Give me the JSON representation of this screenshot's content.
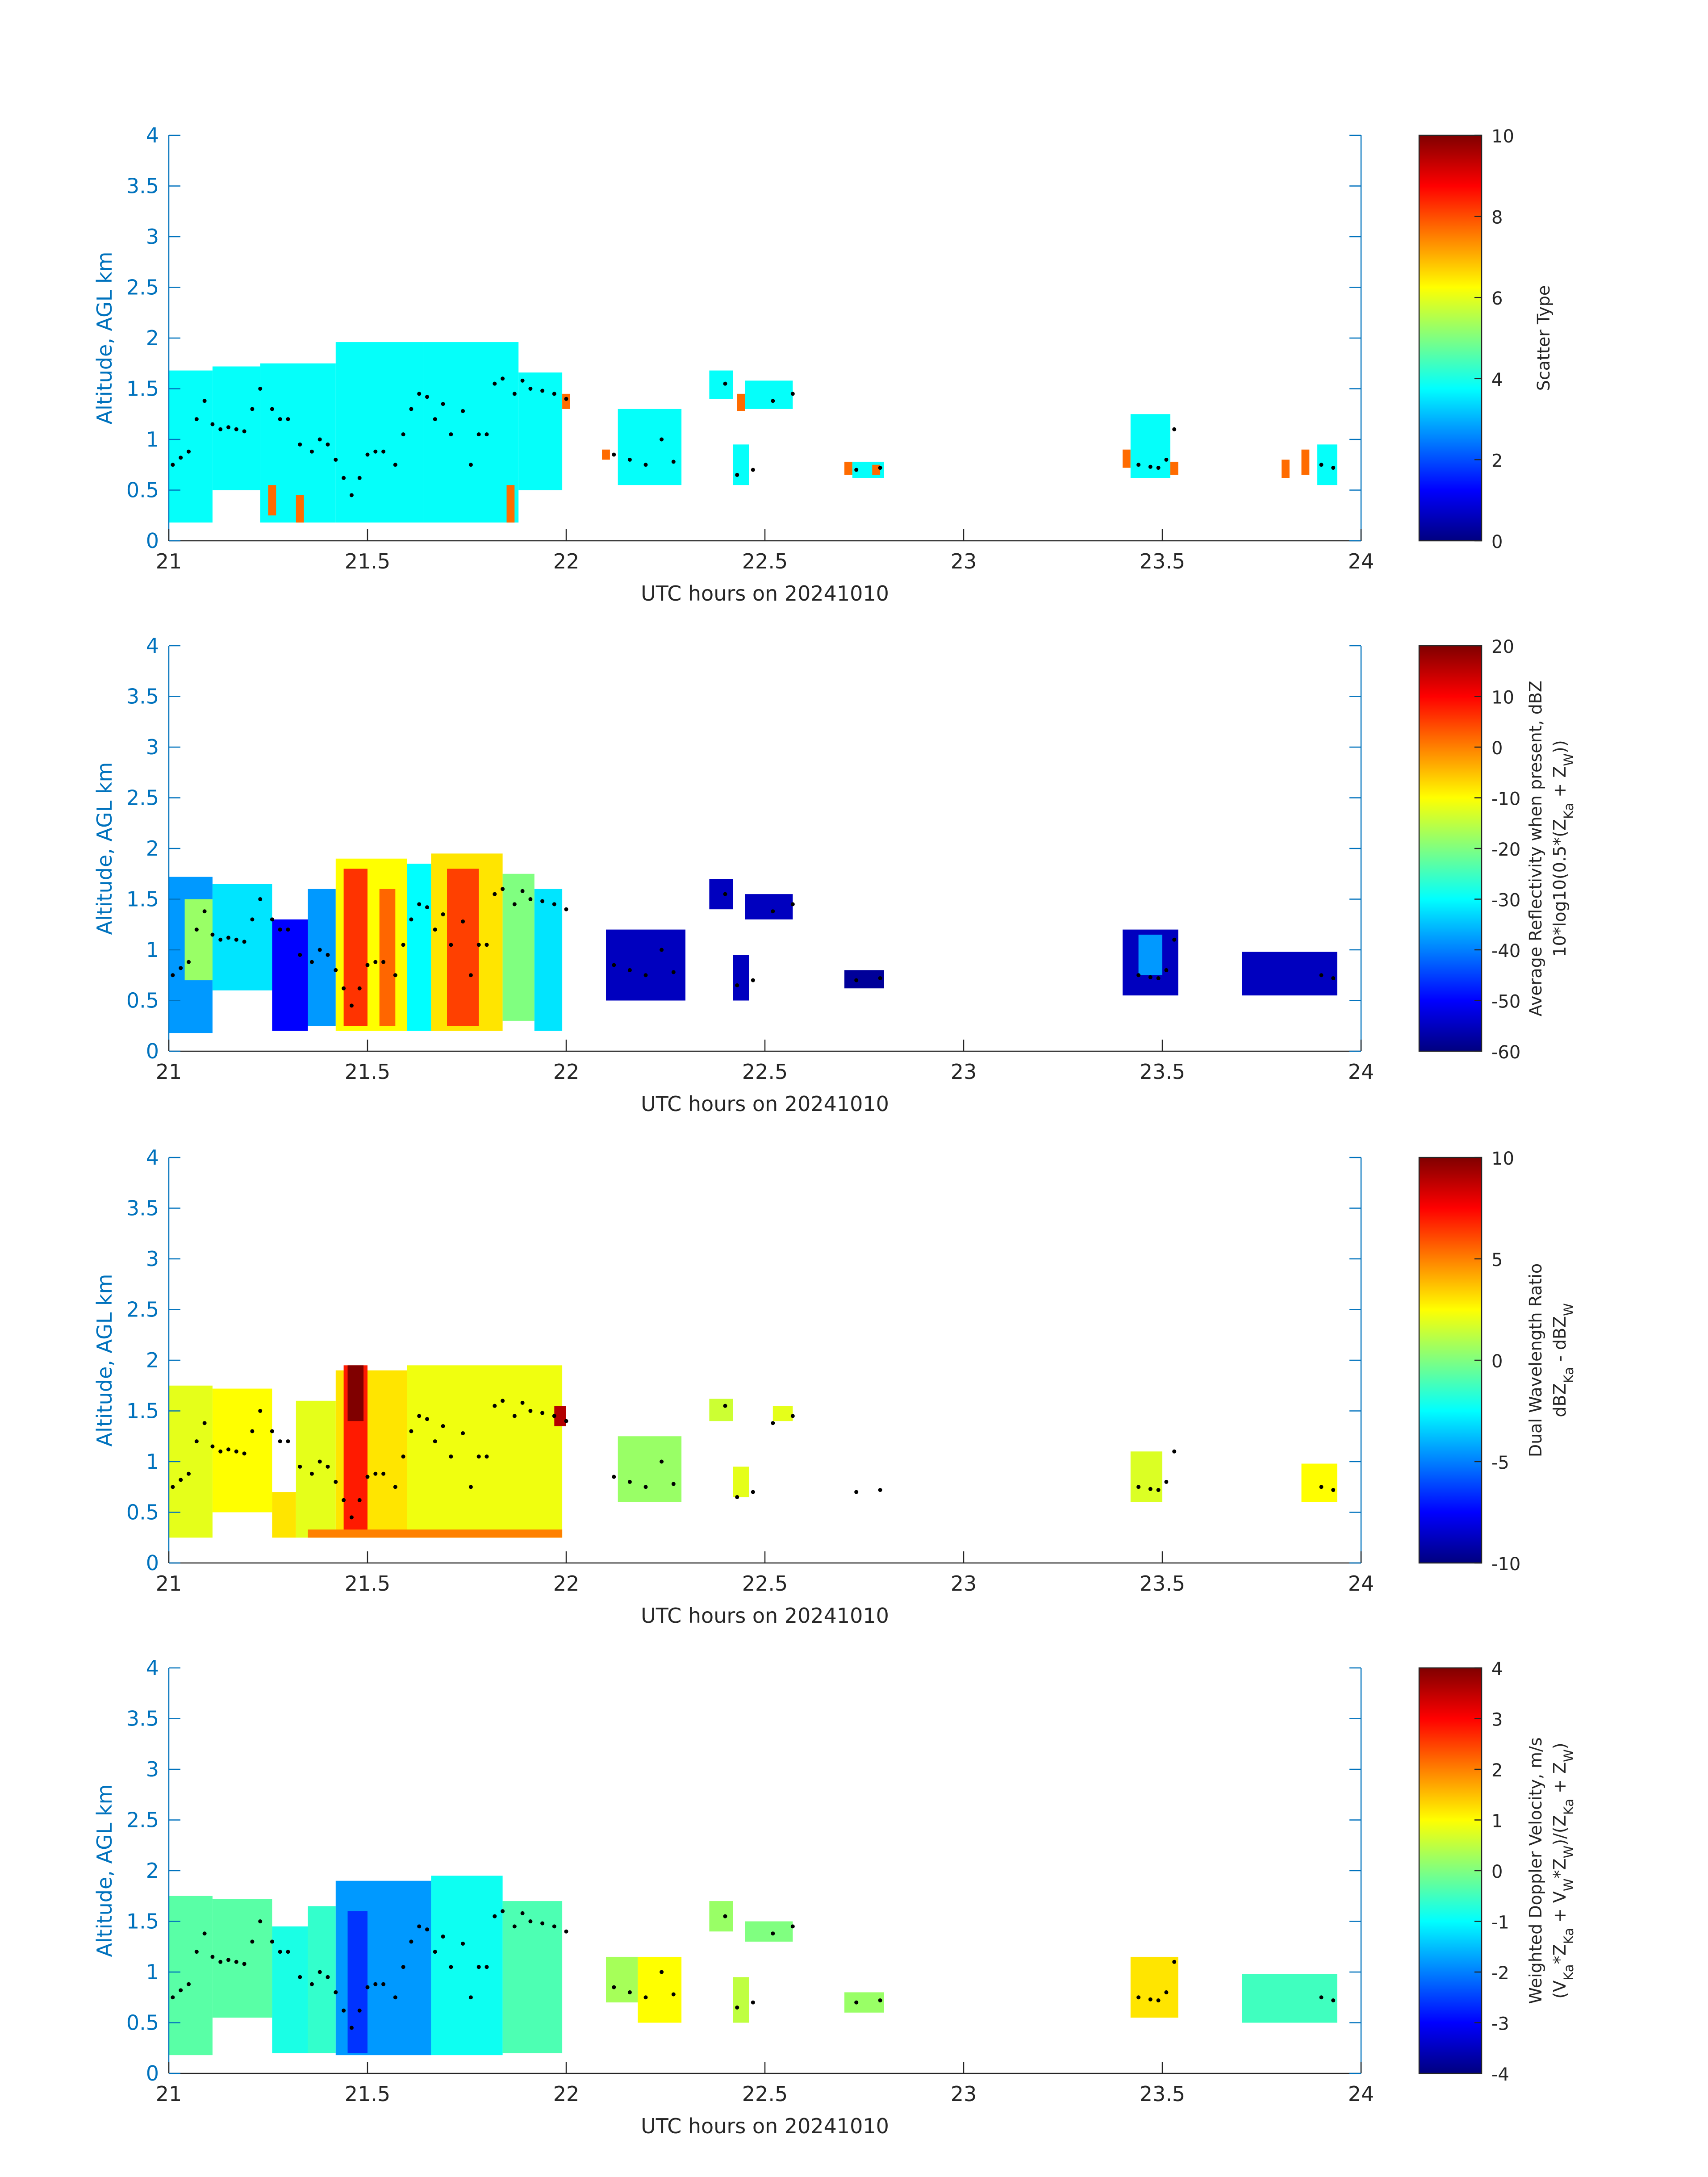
{
  "figure": {
    "date_label": "20241010",
    "axis_color": "#0072bd",
    "colormap": "jet"
  },
  "chart_data": [
    {
      "type": "heatmap",
      "xlabel": "UTC hours on 20241010",
      "ylabel": "Altitude, AGL km",
      "xlim": [
        21,
        24
      ],
      "ylim": [
        0,
        4
      ],
      "xticks": [
        21,
        21.5,
        22,
        22.5,
        23,
        23.5,
        24
      ],
      "yticks": [
        0,
        0.5,
        1,
        1.5,
        2,
        2.5,
        3,
        3.5,
        4
      ],
      "colorbar": {
        "label_lines": [
          "Scatter Type"
        ],
        "range": [
          0,
          10
        ],
        "ticks": [
          0,
          2,
          4,
          6,
          8,
          10
        ]
      },
      "cells": [
        {
          "x0": 21.0,
          "x1": 21.11,
          "y0": 0.18,
          "y1": 1.68,
          "v": 3.8
        },
        {
          "x0": 21.11,
          "x1": 21.23,
          "y0": 0.5,
          "y1": 1.72,
          "v": 3.8
        },
        {
          "x0": 21.23,
          "x1": 21.42,
          "y0": 0.18,
          "y1": 1.75,
          "v": 3.8
        },
        {
          "x0": 21.42,
          "x1": 21.64,
          "y0": 0.18,
          "y1": 1.96,
          "v": 3.8
        },
        {
          "x0": 21.64,
          "x1": 21.88,
          "y0": 0.18,
          "y1": 1.96,
          "v": 3.8
        },
        {
          "x0": 21.88,
          "x1": 21.99,
          "y0": 0.5,
          "y1": 1.66,
          "v": 3.8
        },
        {
          "x0": 21.25,
          "x1": 21.27,
          "y0": 0.25,
          "y1": 0.55,
          "v": 7.7
        },
        {
          "x0": 21.32,
          "x1": 21.34,
          "y0": 0.18,
          "y1": 0.45,
          "v": 7.7
        },
        {
          "x0": 21.85,
          "x1": 21.87,
          "y0": 0.18,
          "y1": 0.55,
          "v": 7.7
        },
        {
          "x0": 21.99,
          "x1": 22.01,
          "y0": 1.3,
          "y1": 1.45,
          "v": 7.7
        },
        {
          "x0": 22.09,
          "x1": 22.11,
          "y0": 0.8,
          "y1": 0.9,
          "v": 7.7
        },
        {
          "x0": 22.17,
          "x1": 22.19,
          "y0": 0.72,
          "y1": 0.85,
          "v": 7.7
        },
        {
          "x0": 22.13,
          "x1": 22.29,
          "y0": 0.55,
          "y1": 1.3,
          "v": 3.8
        },
        {
          "x0": 22.36,
          "x1": 22.42,
          "y0": 1.4,
          "y1": 1.68,
          "v": 3.8
        },
        {
          "x0": 22.43,
          "x1": 22.45,
          "y0": 1.28,
          "y1": 1.45,
          "v": 7.7
        },
        {
          "x0": 22.45,
          "x1": 22.57,
          "y0": 1.3,
          "y1": 1.58,
          "v": 3.8
        },
        {
          "x0": 22.42,
          "x1": 22.46,
          "y0": 0.55,
          "y1": 0.95,
          "v": 3.8
        },
        {
          "x0": 22.7,
          "x1": 22.72,
          "y0": 0.65,
          "y1": 0.78,
          "v": 7.7
        },
        {
          "x0": 22.72,
          "x1": 22.8,
          "y0": 0.62,
          "y1": 0.78,
          "v": 3.8
        },
        {
          "x0": 22.77,
          "x1": 22.79,
          "y0": 0.65,
          "y1": 0.75,
          "v": 7.7
        },
        {
          "x0": 23.4,
          "x1": 23.42,
          "y0": 0.72,
          "y1": 0.9,
          "v": 7.7
        },
        {
          "x0": 23.42,
          "x1": 23.52,
          "y0": 0.62,
          "y1": 1.25,
          "v": 3.8
        },
        {
          "x0": 23.52,
          "x1": 23.54,
          "y0": 0.65,
          "y1": 0.78,
          "v": 7.7
        },
        {
          "x0": 23.8,
          "x1": 23.82,
          "y0": 0.62,
          "y1": 0.8,
          "v": 7.7
        },
        {
          "x0": 23.85,
          "x1": 23.87,
          "y0": 0.65,
          "y1": 0.9,
          "v": 7.7
        },
        {
          "x0": 23.89,
          "x1": 23.94,
          "y0": 0.55,
          "y1": 0.95,
          "v": 3.8
        }
      ]
    },
    {
      "type": "heatmap",
      "xlabel": "UTC hours on 20241010",
      "ylabel": "Altitude, AGL km",
      "xlim": [
        21,
        24
      ],
      "ylim": [
        0,
        4
      ],
      "xticks": [
        21,
        21.5,
        22,
        22.5,
        23,
        23.5,
        24
      ],
      "yticks": [
        0,
        0.5,
        1,
        1.5,
        2,
        2.5,
        3,
        3.5,
        4
      ],
      "colorbar": {
        "label_lines": [
          "Average Reflectivity when present, dBZ",
          "10*log10(0.5*(Z_{Ka} + Z_{W}))"
        ],
        "range": [
          -60,
          20
        ],
        "ticks": [
          -60,
          -50,
          -40,
          -30,
          -20,
          -10,
          0,
          10,
          20
        ]
      },
      "cells": [
        {
          "x0": 21.0,
          "x1": 21.11,
          "y0": 0.18,
          "y1": 1.72,
          "v": -38
        },
        {
          "x0": 21.04,
          "x1": 21.2,
          "y0": 0.7,
          "y1": 1.5,
          "v": -18
        },
        {
          "x0": 21.11,
          "x1": 21.26,
          "y0": 0.6,
          "y1": 1.65,
          "v": -32
        },
        {
          "x0": 21.26,
          "x1": 21.35,
          "y0": 0.2,
          "y1": 1.3,
          "v": -50
        },
        {
          "x0": 21.35,
          "x1": 21.42,
          "y0": 0.25,
          "y1": 1.6,
          "v": -38
        },
        {
          "x0": 21.42,
          "x1": 21.6,
          "y0": 0.2,
          "y1": 1.9,
          "v": -10
        },
        {
          "x0": 21.44,
          "x1": 21.5,
          "y0": 0.25,
          "y1": 1.8,
          "v": 6
        },
        {
          "x0": 21.53,
          "x1": 21.57,
          "y0": 0.25,
          "y1": 1.6,
          "v": 2
        },
        {
          "x0": 21.6,
          "x1": 21.66,
          "y0": 0.2,
          "y1": 1.85,
          "v": -30
        },
        {
          "x0": 21.66,
          "x1": 21.84,
          "y0": 0.2,
          "y1": 1.95,
          "v": -8
        },
        {
          "x0": 21.7,
          "x1": 21.78,
          "y0": 0.25,
          "y1": 1.8,
          "v": 5
        },
        {
          "x0": 21.84,
          "x1": 21.92,
          "y0": 0.3,
          "y1": 1.75,
          "v": -20
        },
        {
          "x0": 21.92,
          "x1": 21.99,
          "y0": 0.2,
          "y1": 1.6,
          "v": -32
        },
        {
          "x0": 22.1,
          "x1": 22.3,
          "y0": 0.5,
          "y1": 1.2,
          "v": -55
        },
        {
          "x0": 22.36,
          "x1": 22.42,
          "y0": 1.4,
          "y1": 1.7,
          "v": -55
        },
        {
          "x0": 22.45,
          "x1": 22.57,
          "y0": 1.3,
          "y1": 1.55,
          "v": -55
        },
        {
          "x0": 22.42,
          "x1": 22.46,
          "y0": 0.5,
          "y1": 0.95,
          "v": -55
        },
        {
          "x0": 22.7,
          "x1": 22.8,
          "y0": 0.62,
          "y1": 0.8,
          "v": -58
        },
        {
          "x0": 23.4,
          "x1": 23.54,
          "y0": 0.55,
          "y1": 1.2,
          "v": -55
        },
        {
          "x0": 23.44,
          "x1": 23.5,
          "y0": 0.75,
          "y1": 1.15,
          "v": -38
        },
        {
          "x0": 23.7,
          "x1": 23.94,
          "y0": 0.55,
          "y1": 0.98,
          "v": -55
        }
      ]
    },
    {
      "type": "heatmap",
      "xlabel": "UTC hours on 20241010",
      "ylabel": "Altitude, AGL km",
      "xlim": [
        21,
        24
      ],
      "ylim": [
        0,
        4
      ],
      "xticks": [
        21,
        21.5,
        22,
        22.5,
        23,
        23.5,
        24
      ],
      "yticks": [
        0,
        0.5,
        1,
        1.5,
        2,
        2.5,
        3,
        3.5,
        4
      ],
      "colorbar": {
        "label_lines": [
          "Dual Wavelength Ratio",
          "dBZ_{Ka} - dBZ_{W}"
        ],
        "range": [
          -10,
          10
        ],
        "ticks": [
          -10,
          -5,
          0,
          5,
          10
        ]
      },
      "cells": [
        {
          "x0": 21.0,
          "x1": 21.11,
          "y0": 0.25,
          "y1": 1.75,
          "v": 2
        },
        {
          "x0": 21.11,
          "x1": 21.26,
          "y0": 0.5,
          "y1": 1.72,
          "v": 2.5
        },
        {
          "x0": 21.26,
          "x1": 21.32,
          "y0": 0.25,
          "y1": 0.7,
          "v": 3
        },
        {
          "x0": 21.32,
          "x1": 21.42,
          "y0": 0.25,
          "y1": 1.6,
          "v": 2
        },
        {
          "x0": 21.42,
          "x1": 21.6,
          "y0": 0.25,
          "y1": 1.9,
          "v": 3
        },
        {
          "x0": 21.44,
          "x1": 21.5,
          "y0": 0.3,
          "y1": 1.95,
          "v": 7
        },
        {
          "x0": 21.45,
          "x1": 21.49,
          "y0": 1.4,
          "y1": 1.95,
          "v": 10
        },
        {
          "x0": 21.6,
          "x1": 21.99,
          "y0": 0.25,
          "y1": 1.95,
          "v": 2.2
        },
        {
          "x0": 21.35,
          "x1": 21.99,
          "y0": 0.25,
          "y1": 0.33,
          "v": 5
        },
        {
          "x0": 21.97,
          "x1": 22.0,
          "y0": 1.35,
          "y1": 1.55,
          "v": 9
        },
        {
          "x0": 22.13,
          "x1": 22.29,
          "y0": 0.6,
          "y1": 1.25,
          "v": 0.5
        },
        {
          "x0": 22.36,
          "x1": 22.42,
          "y0": 1.4,
          "y1": 1.62,
          "v": 1.5
        },
        {
          "x0": 22.42,
          "x1": 22.46,
          "y0": 0.65,
          "y1": 0.95,
          "v": 2
        },
        {
          "x0": 22.52,
          "x1": 22.57,
          "y0": 1.4,
          "y1": 1.55,
          "v": 2
        },
        {
          "x0": 23.42,
          "x1": 23.5,
          "y0": 0.6,
          "y1": 1.1,
          "v": 1.8
        },
        {
          "x0": 23.85,
          "x1": 23.94,
          "y0": 0.6,
          "y1": 0.98,
          "v": 2.5
        }
      ]
    },
    {
      "type": "heatmap",
      "xlabel": "UTC hours on 20241010",
      "ylabel": "Altitude, AGL km",
      "xlim": [
        21,
        24
      ],
      "ylim": [
        0,
        4
      ],
      "xticks": [
        21,
        21.5,
        22,
        22.5,
        23,
        23.5,
        24
      ],
      "yticks": [
        0,
        0.5,
        1,
        1.5,
        2,
        2.5,
        3,
        3.5,
        4
      ],
      "colorbar": {
        "label_lines": [
          "Weighted Doppler Velocity, m/s",
          "(V_{Ka}*Z_{Ka} + V_{W}*Z_{W})/(Z_{Ka} + Z_{W})"
        ],
        "range": [
          -4,
          4
        ],
        "ticks": [
          -4,
          -3,
          -2,
          -1,
          0,
          1,
          2,
          3,
          4
        ]
      },
      "cells": [
        {
          "x0": 21.0,
          "x1": 21.11,
          "y0": 0.18,
          "y1": 1.75,
          "v": -0.3
        },
        {
          "x0": 21.11,
          "x1": 21.26,
          "y0": 0.55,
          "y1": 1.72,
          "v": -0.3
        },
        {
          "x0": 21.26,
          "x1": 21.35,
          "y0": 0.2,
          "y1": 1.45,
          "v": -0.8
        },
        {
          "x0": 21.35,
          "x1": 21.42,
          "y0": 0.2,
          "y1": 1.65,
          "v": -0.6
        },
        {
          "x0": 21.42,
          "x1": 21.66,
          "y0": 0.18,
          "y1": 1.9,
          "v": -1.8
        },
        {
          "x0": 21.45,
          "x1": 21.5,
          "y0": 0.2,
          "y1": 1.6,
          "v": -2.6
        },
        {
          "x0": 21.66,
          "x1": 21.84,
          "y0": 0.18,
          "y1": 1.95,
          "v": -0.9
        },
        {
          "x0": 21.84,
          "x1": 21.99,
          "y0": 0.2,
          "y1": 1.7,
          "v": -0.4
        },
        {
          "x0": 22.1,
          "x1": 22.18,
          "y0": 0.7,
          "y1": 1.15,
          "v": 0.3
        },
        {
          "x0": 22.18,
          "x1": 22.29,
          "y0": 0.5,
          "y1": 1.15,
          "v": 1
        },
        {
          "x0": 22.36,
          "x1": 22.42,
          "y0": 1.4,
          "y1": 1.7,
          "v": 0.2
        },
        {
          "x0": 22.45,
          "x1": 22.57,
          "y0": 1.3,
          "y1": 1.5,
          "v": 0
        },
        {
          "x0": 22.42,
          "x1": 22.46,
          "y0": 0.5,
          "y1": 0.95,
          "v": 0.5
        },
        {
          "x0": 22.7,
          "x1": 22.8,
          "y0": 0.6,
          "y1": 0.8,
          "v": 0.2
        },
        {
          "x0": 23.42,
          "x1": 23.54,
          "y0": 0.55,
          "y1": 1.15,
          "v": 1.2
        },
        {
          "x0": 23.7,
          "x1": 23.94,
          "y0": 0.5,
          "y1": 0.98,
          "v": -0.5
        }
      ]
    }
  ],
  "cloud_base_points": [
    [
      21.01,
      0.75
    ],
    [
      21.03,
      0.82
    ],
    [
      21.05,
      0.88
    ],
    [
      21.07,
      1.2
    ],
    [
      21.09,
      1.38
    ],
    [
      21.11,
      1.15
    ],
    [
      21.13,
      1.1
    ],
    [
      21.15,
      1.12
    ],
    [
      21.17,
      1.1
    ],
    [
      21.19,
      1.08
    ],
    [
      21.21,
      1.3
    ],
    [
      21.23,
      1.5
    ],
    [
      21.26,
      1.3
    ],
    [
      21.28,
      1.2
    ],
    [
      21.3,
      1.2
    ],
    [
      21.33,
      0.95
    ],
    [
      21.36,
      0.88
    ],
    [
      21.38,
      1.0
    ],
    [
      21.4,
      0.95
    ],
    [
      21.42,
      0.8
    ],
    [
      21.44,
      0.62
    ],
    [
      21.46,
      0.45
    ],
    [
      21.48,
      0.62
    ],
    [
      21.5,
      0.85
    ],
    [
      21.52,
      0.88
    ],
    [
      21.54,
      0.88
    ],
    [
      21.57,
      0.75
    ],
    [
      21.59,
      1.05
    ],
    [
      21.61,
      1.3
    ],
    [
      21.63,
      1.45
    ],
    [
      21.65,
      1.42
    ],
    [
      21.67,
      1.2
    ],
    [
      21.69,
      1.35
    ],
    [
      21.71,
      1.05
    ],
    [
      21.74,
      1.28
    ],
    [
      21.76,
      0.75
    ],
    [
      21.78,
      1.05
    ],
    [
      21.8,
      1.05
    ],
    [
      21.82,
      1.55
    ],
    [
      21.84,
      1.6
    ],
    [
      21.87,
      1.45
    ],
    [
      21.89,
      1.58
    ],
    [
      21.91,
      1.5
    ],
    [
      21.94,
      1.48
    ],
    [
      21.97,
      1.45
    ],
    [
      22.0,
      1.4
    ],
    [
      22.12,
      0.85
    ],
    [
      22.16,
      0.8
    ],
    [
      22.2,
      0.75
    ],
    [
      22.24,
      1.0
    ],
    [
      22.27,
      0.78
    ],
    [
      22.4,
      1.55
    ],
    [
      22.43,
      0.65
    ],
    [
      22.47,
      0.7
    ],
    [
      22.52,
      1.38
    ],
    [
      22.57,
      1.45
    ],
    [
      22.73,
      0.7
    ],
    [
      22.79,
      0.72
    ],
    [
      23.44,
      0.75
    ],
    [
      23.47,
      0.73
    ],
    [
      23.49,
      0.72
    ],
    [
      23.51,
      0.8
    ],
    [
      23.53,
      1.1
    ],
    [
      23.9,
      0.75
    ],
    [
      23.93,
      0.72
    ]
  ]
}
